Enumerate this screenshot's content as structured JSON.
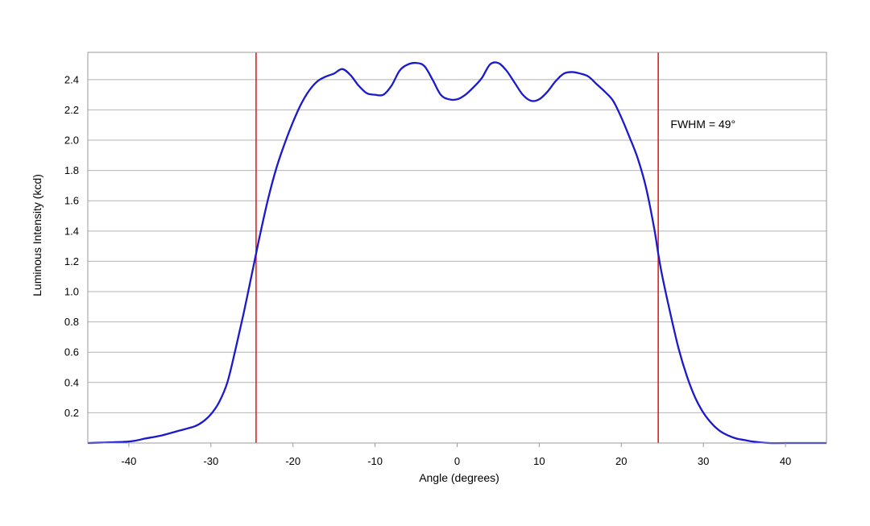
{
  "chart_data": {
    "type": "line",
    "title": "",
    "xlabel": "Angle (degrees)",
    "ylabel": "Luminous Intensity (kcd)",
    "xlim": [
      -45,
      45
    ],
    "ylim": [
      0,
      2.58
    ],
    "x_ticks": [
      -40,
      -30,
      -20,
      -10,
      0,
      10,
      20,
      30,
      40
    ],
    "y_ticks": [
      0.2,
      0.4,
      0.6,
      0.8,
      1.0,
      1.2,
      1.4,
      1.6,
      1.8,
      2.0,
      2.2,
      2.4
    ],
    "y_tick_labels": [
      "0.2",
      "0.4",
      "0.6",
      "0.8",
      "1.0",
      "1.2",
      "1.4",
      "1.6",
      "1.8",
      "2.0",
      "2.2",
      "2.4"
    ],
    "grid": true,
    "legend": "none",
    "series": [
      {
        "color": "#1a1acc",
        "x": [
          -45,
          -40,
          -38,
          -36,
          -34,
          -32,
          -31,
          -30,
          -29,
          -28,
          -27,
          -26,
          -25,
          -24.5,
          -24,
          -23,
          -22,
          -21,
          -20,
          -19,
          -18,
          -17,
          -16,
          -15,
          -14,
          -13,
          -12,
          -11,
          -10,
          -9,
          -8,
          -7,
          -6,
          -5,
          -4,
          -3,
          -2,
          -1,
          0,
          1,
          2,
          3,
          4,
          5,
          6,
          7,
          8,
          9,
          10,
          11,
          12,
          13,
          14,
          15,
          16,
          17,
          18,
          19,
          20,
          21,
          22,
          23,
          24,
          24.5,
          25,
          26,
          27,
          28,
          29,
          30,
          31,
          32,
          33,
          34,
          35,
          36,
          38,
          40,
          45
        ],
        "y": [
          0.0,
          0.01,
          0.03,
          0.05,
          0.08,
          0.11,
          0.14,
          0.19,
          0.27,
          0.4,
          0.62,
          0.86,
          1.12,
          1.25,
          1.38,
          1.62,
          1.82,
          1.98,
          2.12,
          2.24,
          2.33,
          2.39,
          2.42,
          2.44,
          2.47,
          2.43,
          2.36,
          2.31,
          2.3,
          2.3,
          2.36,
          2.46,
          2.5,
          2.51,
          2.49,
          2.4,
          2.3,
          2.27,
          2.27,
          2.3,
          2.35,
          2.41,
          2.5,
          2.51,
          2.46,
          2.38,
          2.3,
          2.26,
          2.27,
          2.32,
          2.39,
          2.44,
          2.45,
          2.44,
          2.42,
          2.37,
          2.32,
          2.26,
          2.15,
          2.02,
          1.88,
          1.69,
          1.42,
          1.25,
          1.1,
          0.85,
          0.62,
          0.44,
          0.3,
          0.2,
          0.13,
          0.08,
          0.05,
          0.03,
          0.02,
          0.01,
          0.0,
          0.0,
          0.0
        ]
      }
    ],
    "reference_lines": [
      {
        "x": -24.5,
        "color": "#e02020"
      },
      {
        "x": 24.5,
        "color": "#e02020"
      }
    ],
    "annotations": [
      {
        "text": "FWHM = 49°",
        "x": 26,
        "y": 2.08
      }
    ]
  }
}
